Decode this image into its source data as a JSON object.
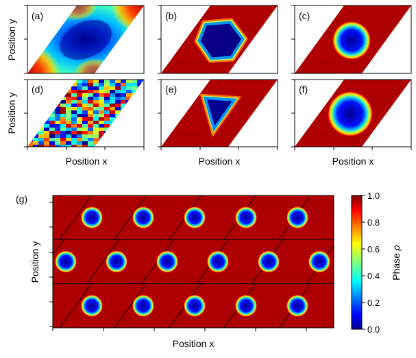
{
  "chart_data": [
    {
      "type": "heatmap",
      "panels": [
        {
          "label": "(a)",
          "pattern": "smooth-sinusoidal",
          "description_shown": "low phase blob in center, high phase at corners"
        },
        {
          "label": "(b)",
          "pattern": "single-droplet",
          "shape": "hexagon",
          "inner_value": 0.05,
          "outer_value": 0.98
        },
        {
          "label": "(c)",
          "pattern": "single-droplet",
          "shape": "circle",
          "inner_value": 0.05,
          "outer_value": 0.98
        },
        {
          "label": "(d)",
          "pattern": "random-noise",
          "value_range": [
            0,
            1
          ]
        },
        {
          "label": "(e)",
          "pattern": "single-droplet",
          "shape": "triangle",
          "inner_value": 0.05,
          "outer_value": 0.98
        },
        {
          "label": "(f)",
          "pattern": "single-droplet",
          "shape": "circle",
          "inner_value": 0.05,
          "outer_value": 0.98
        }
      ],
      "xlabel": "Position x",
      "ylabel": "Position y",
      "domain_shape": "parallelogram (sheared periodic cell)"
    },
    {
      "type": "heatmap",
      "label": "(g)",
      "pattern": "tiled periodic cells, one droplet per cell",
      "rows": 3,
      "droplets_per_row": [
        5,
        6,
        5
      ],
      "inner_value": 0.05,
      "outer_value": 0.98,
      "xlabel": "Position x",
      "ylabel": "Position y"
    }
  ],
  "colorbar": {
    "label": "Phase",
    "symbol": "ρ",
    "colormap": "jet",
    "range": [
      0.0,
      1.0
    ],
    "ticks": [
      0.0,
      0.2,
      0.4,
      0.6,
      0.8,
      1.0
    ],
    "tick_labels": [
      "0.0",
      "0.2",
      "0.4",
      "0.6",
      "0.8",
      "1.0"
    ]
  },
  "labels": {
    "x_label_top": "Position x",
    "y_label_top_row": "Position y",
    "y_label_mid_row": "Position y",
    "x_label_g": "Position x",
    "y_label_g": "Position y",
    "colorbar_label": "Phase"
  }
}
